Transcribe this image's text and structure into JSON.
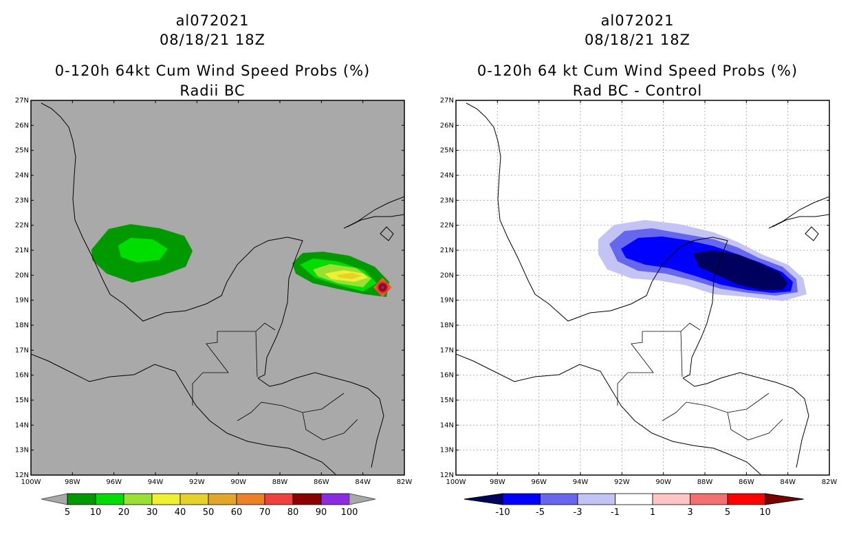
{
  "left_panel": {
    "storm_id": "al072021",
    "datetime": "08/18/21 18Z",
    "title": "0-120h 64kt Cum Wind Speed Probs (%)",
    "subtitle": "Radii BC",
    "background": "#a9a9a9",
    "colorbar": {
      "labels": [
        "5",
        "10",
        "20",
        "30",
        "40",
        "50",
        "60",
        "70",
        "80",
        "90",
        "100"
      ],
      "colors": [
        "#009900",
        "#00dd00",
        "#99e033",
        "#f0f033",
        "#e6d02a",
        "#e2a62a",
        "#ec8127",
        "#f04040",
        "#8c0000",
        "#8a2be2"
      ],
      "end_color": "#a9a9a9"
    }
  },
  "right_panel": {
    "storm_id": "al072021",
    "datetime": "08/18/21 18Z",
    "title": "0-120h 64 kt Cum Wind Speed Probs (%)",
    "subtitle": "Rad BC - Control",
    "background": "#ffffff",
    "colorbar": {
      "labels": [
        "-10",
        "-5",
        "-3",
        "-1",
        "1",
        "3",
        "5",
        "10"
      ],
      "colors": [
        "#0000ff",
        "#6666ee",
        "#c4c4f4",
        "#ffffff",
        "#ffc4c4",
        "#f47070",
        "#ff0000"
      ],
      "end_low": "#00005f",
      "end_high": "#7a0000"
    }
  },
  "map": {
    "lat_labels": [
      "27N",
      "26N",
      "25N",
      "24N",
      "23N",
      "22N",
      "21N",
      "20N",
      "19N",
      "18N",
      "17N",
      "16N",
      "15N",
      "14N",
      "13N",
      "12N"
    ],
    "lon_labels": [
      "100W",
      "98W",
      "96W",
      "94W",
      "92W",
      "90W",
      "88W",
      "86W",
      "84W",
      "82W"
    ],
    "lat_range": [
      12,
      27
    ],
    "lon_range": [
      -100,
      -82
    ]
  }
}
